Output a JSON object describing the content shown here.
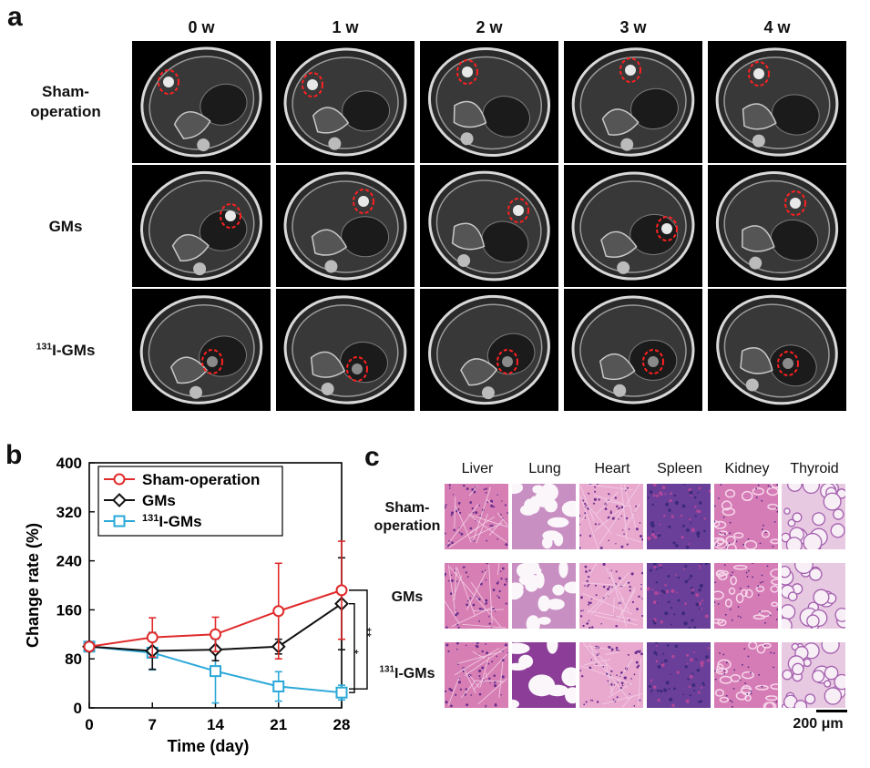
{
  "panel_a": {
    "letter": "a",
    "columns": [
      "0 w",
      "1 w",
      "2 w",
      "3 w",
      "4 w"
    ],
    "rows": [
      {
        "line1": "Sham-",
        "line2": "operation",
        "sup": "",
        "text": ""
      },
      {
        "line1": "GMs",
        "line2": "",
        "sup": "",
        "text": ""
      },
      {
        "line1": "",
        "line2": "",
        "sup": "131",
        "text": "I-GMs"
      }
    ]
  },
  "panel_b": {
    "letter": "b",
    "sig_single": "*",
    "sig_double": "**"
  },
  "chart_data": {
    "type": "line",
    "xlabel": "Time (day)",
    "ylabel": "Change rate (%)",
    "x": [
      0,
      7,
      14,
      21,
      28
    ],
    "xlim": [
      0,
      28
    ],
    "ylim": [
      0,
      400
    ],
    "yticks": [
      0,
      80,
      160,
      240,
      320,
      400
    ],
    "legend_position": "top-left",
    "series": [
      {
        "name": "Sham-operation",
        "marker": "circle",
        "color": "#e02b2b",
        "values": [
          100,
          115,
          120,
          158,
          192
        ],
        "errors": [
          0,
          32,
          28,
          78,
          80
        ]
      },
      {
        "name": "GMs",
        "marker": "diamond",
        "color": "#111111",
        "values": [
          100,
          93,
          95,
          100,
          170
        ],
        "errors": [
          0,
          30,
          18,
          12,
          75
        ]
      },
      {
        "name": "I-GMs",
        "sup": "131",
        "marker": "square",
        "color": "#2aa8d8",
        "values": [
          100,
          90,
          60,
          35,
          25
        ],
        "errors": [
          0,
          28,
          52,
          24,
          12
        ]
      }
    ]
  },
  "panel_c": {
    "letter": "c",
    "organs": [
      "Liver",
      "Lung",
      "Heart",
      "Spleen",
      "Kidney",
      "Thyroid"
    ],
    "rows": [
      {
        "line1": "Sham-",
        "line2": "operation",
        "sup": "",
        "text": ""
      },
      {
        "line1": "GMs",
        "line2": "",
        "sup": "",
        "text": ""
      },
      {
        "line1": "",
        "line2": "",
        "sup": "131",
        "text": "I-GMs"
      }
    ],
    "scale_bar": "200 μm"
  }
}
